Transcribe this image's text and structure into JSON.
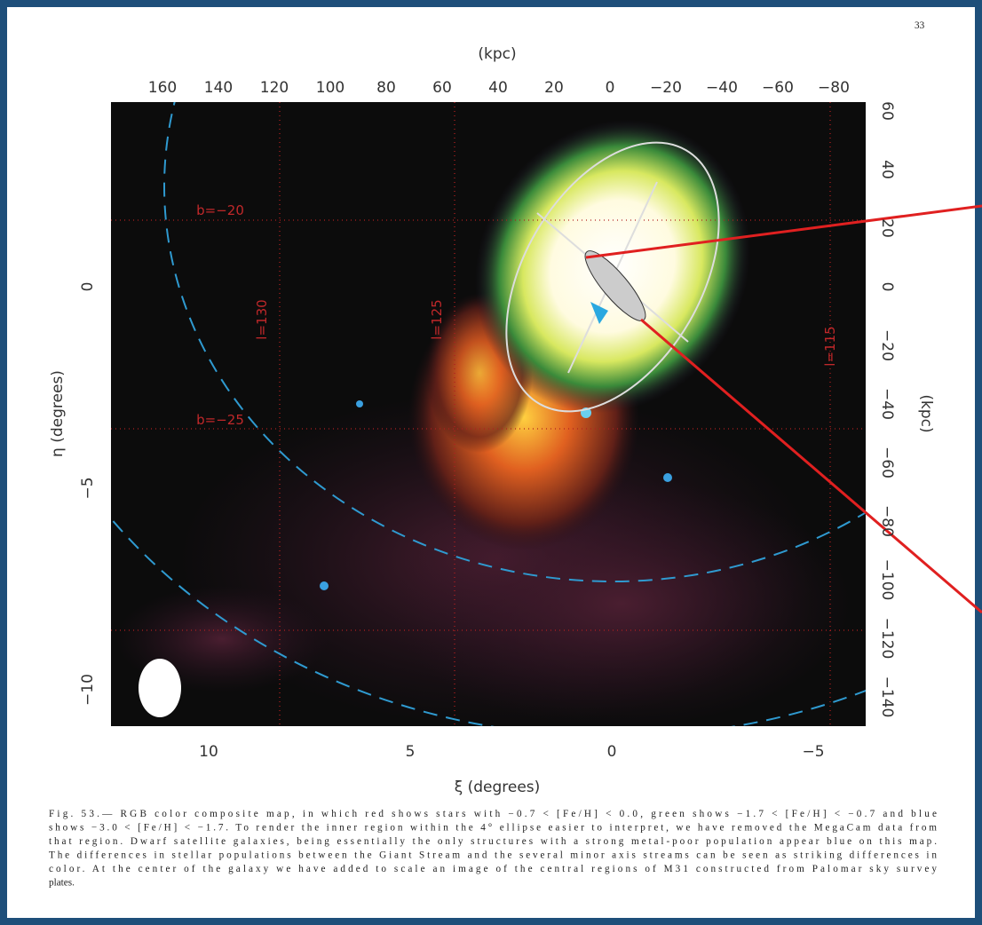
{
  "page_number": "33",
  "figure": {
    "top_axis": {
      "label": "(kpc)",
      "ticks": [
        "160",
        "140",
        "120",
        "100",
        "80",
        "60",
        "40",
        "20",
        "0",
        "−20",
        "−40",
        "−60",
        "−80"
      ]
    },
    "right_axis": {
      "label": "(kpc)",
      "ticks": [
        "60",
        "40",
        "20",
        "0",
        "−20",
        "−40",
        "−60",
        "−80",
        "−100",
        "−120",
        "−140"
      ]
    },
    "left_axis": {
      "label": "η (degrees)",
      "ticks": [
        "0",
        "−5",
        "−10"
      ]
    },
    "bottom_axis": {
      "label": "ξ (degrees)",
      "ticks": [
        "10",
        "5",
        "0",
        "−5"
      ]
    },
    "annotations": [
      "b=−20",
      "b=−25",
      "l=130",
      "l=125",
      "l=115"
    ]
  },
  "caption": {
    "lines": [
      "Fig. 53.— RGB color composite map, in which red shows stars with −0.7 < [Fe/H] < 0.0, green shows −1.7 < [Fe/H] < −0.7 and blue",
      "shows −3.0 < [Fe/H] < −1.7. To render the inner region within the 4° ellipse easier to interpret, we have removed the MegaCam data from",
      "that region. Dwarf satellite galaxies, being essentially the only structures with a strong metal-poor population appear blue on this map.",
      "The differences in stellar populations between the Giant Stream and the several minor axis streams can be seen as striking differences in",
      "color. At the center of the galaxy we have added to scale an image of the central regions of M31 constructed from Palomar sky survey",
      "plates."
    ]
  }
}
